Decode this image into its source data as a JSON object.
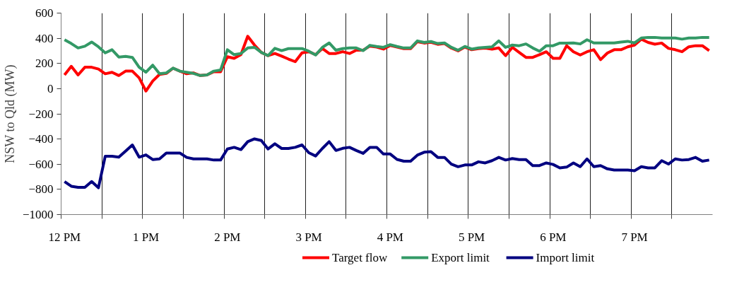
{
  "chart_data": {
    "type": "line",
    "ylabel": "NSW to Qld (MW)",
    "categories": [
      "12 PM",
      null,
      null,
      null,
      null,
      null,
      null,
      null,
      null,
      null,
      null,
      null,
      "1 PM",
      null,
      null,
      null,
      null,
      null,
      null,
      null,
      null,
      null,
      null,
      null,
      "2 PM",
      null,
      null,
      null,
      null,
      null,
      null,
      null,
      null,
      null,
      null,
      null,
      "3 PM",
      null,
      null,
      null,
      null,
      null,
      null,
      null,
      null,
      null,
      null,
      null,
      "4 PM",
      null,
      null,
      null,
      null,
      null,
      null,
      null,
      null,
      null,
      null,
      null,
      "5 PM",
      null,
      null,
      null,
      null,
      null,
      null,
      null,
      null,
      null,
      null,
      null,
      "6 PM",
      null,
      null,
      null,
      null,
      null,
      null,
      null,
      null,
      null,
      null,
      null,
      "7 PM",
      null,
      null,
      null,
      null,
      null,
      null,
      null,
      null,
      null,
      null,
      null
    ],
    "series": [
      {
        "name": "Target flow",
        "color": "#ff0000",
        "values": [
          109,
          177,
          109,
          170,
          170,
          156,
          118,
          130,
          104,
          139,
          139,
          86,
          -19,
          60,
          113,
          121,
          162,
          139,
          118,
          125,
          104,
          109,
          135,
          134,
          253,
          241,
          270,
          416,
          346,
          288,
          262,
          279,
          258,
          235,
          214,
          284,
          293,
          270,
          318,
          279,
          279,
          293,
          279,
          305,
          305,
          338,
          330,
          314,
          343,
          330,
          318,
          318,
          373,
          362,
          368,
          352,
          358,
          322,
          300,
          330,
          309,
          318,
          322,
          314,
          323,
          262,
          328,
          288,
          248,
          248,
          270,
          293,
          241,
          241,
          341,
          293,
          267,
          293,
          309,
          230,
          283,
          309,
          309,
          332,
          346,
          393,
          367,
          353,
          362,
          320,
          309,
          293,
          332,
          341,
          341,
          302
        ]
      },
      {
        "name": "Export limit",
        "color": "#339966",
        "values": [
          388,
          358,
          323,
          337,
          370,
          332,
          284,
          309,
          251,
          256,
          248,
          170,
          130,
          186,
          118,
          125,
          163,
          139,
          130,
          121,
          104,
          109,
          139,
          148,
          309,
          270,
          279,
          323,
          328,
          288,
          262,
          320,
          302,
          318,
          318,
          318,
          297,
          267,
          328,
          363,
          305,
          318,
          323,
          323,
          302,
          344,
          335,
          328,
          349,
          335,
          323,
          323,
          379,
          367,
          374,
          358,
          363,
          328,
          305,
          335,
          314,
          323,
          328,
          332,
          379,
          328,
          346,
          341,
          355,
          323,
          297,
          341,
          341,
          362,
          362,
          363,
          355,
          388,
          363,
          363,
          363,
          363,
          370,
          376,
          363,
          402,
          407,
          407,
          402,
          402,
          402,
          393,
          402,
          402,
          407,
          407
        ]
      },
      {
        "name": "Import limit",
        "color": "#000080",
        "values": [
          -738,
          -775,
          -784,
          -784,
          -738,
          -787,
          -537,
          -537,
          -544,
          -496,
          -447,
          -544,
          -526,
          -563,
          -558,
          -511,
          -511,
          -511,
          -546,
          -558,
          -558,
          -558,
          -567,
          -567,
          -479,
          -466,
          -484,
          -421,
          -399,
          -412,
          -479,
          -438,
          -475,
          -475,
          -466,
          -447,
          -509,
          -535,
          -475,
          -421,
          -491,
          -474,
          -466,
          -491,
          -514,
          -466,
          -466,
          -519,
          -519,
          -562,
          -576,
          -576,
          -528,
          -505,
          -500,
          -546,
          -546,
          -599,
          -620,
          -606,
          -606,
          -581,
          -590,
          -572,
          -546,
          -567,
          -555,
          -563,
          -563,
          -611,
          -611,
          -590,
          -602,
          -629,
          -623,
          -590,
          -620,
          -558,
          -620,
          -611,
          -637,
          -646,
          -646,
          -646,
          -652,
          -620,
          -629,
          -629,
          -572,
          -599,
          -558,
          -567,
          -563,
          -546,
          -576,
          -567
        ]
      }
    ],
    "ylim": [
      -1000,
      600
    ],
    "yticks": [
      -1000,
      -800,
      -600,
      -400,
      -200,
      0,
      200,
      400,
      600
    ],
    "grid": "x",
    "legend": "bottom",
    "marker": "none",
    "line_style": "solid"
  }
}
